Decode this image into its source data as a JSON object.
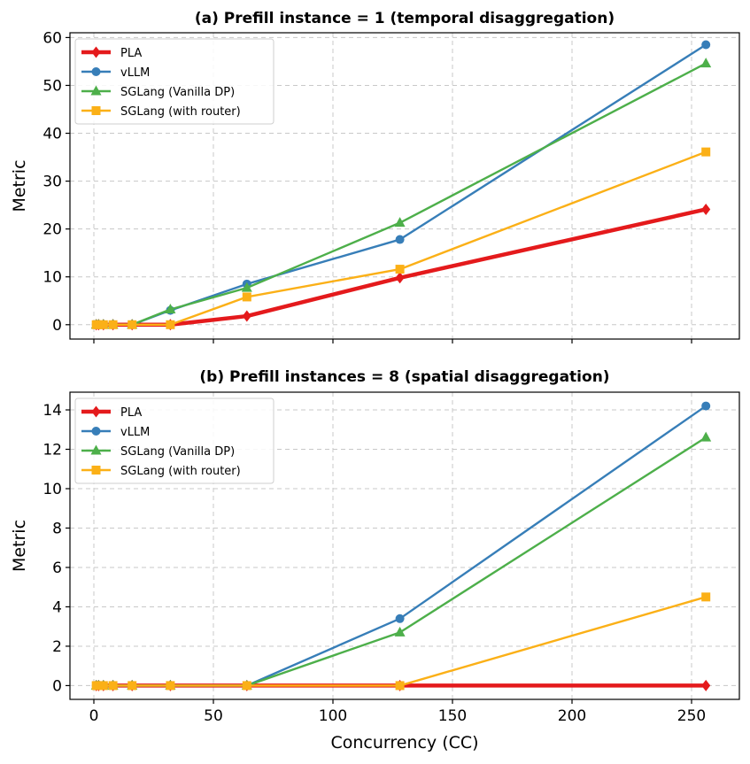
{
  "chart_data": [
    {
      "type": "line",
      "title": "(a) Prefill instance = 1  (temporal disaggregation)",
      "xlabel": "",
      "ylabel": "Metric",
      "x": [
        1,
        2,
        4,
        8,
        16,
        32,
        64,
        128,
        256
      ],
      "xlim": [
        -10,
        270
      ],
      "ylim": [
        -3,
        61
      ],
      "xticks": [
        0,
        50,
        100,
        150,
        200,
        250
      ],
      "yticks": [
        0,
        10,
        20,
        30,
        40,
        50,
        60
      ],
      "show_x_ticklabels": false,
      "grid": true,
      "legend_position": "top-left",
      "series": [
        {
          "name": "PLA",
          "color": "#e41a1c",
          "marker": "diamond",
          "width": 4.5,
          "values": [
            0,
            0,
            0,
            0,
            0,
            0,
            1.8,
            9.8,
            24.1
          ]
        },
        {
          "name": "vLLM",
          "color": "#377eb8",
          "marker": "circle",
          "width": 2.4,
          "values": [
            0,
            0,
            0,
            0,
            0,
            3.0,
            8.5,
            17.8,
            58.5
          ]
        },
        {
          "name": "SGLang (Vanilla DP)",
          "color": "#4daf4a",
          "marker": "triangle",
          "width": 2.4,
          "values": [
            0,
            0,
            0,
            0,
            0,
            3.2,
            7.7,
            21.3,
            54.6
          ]
        },
        {
          "name": "SGLang (with router)",
          "color": "#fbb017",
          "marker": "square",
          "width": 2.4,
          "values": [
            0,
            0,
            0,
            0,
            0,
            0,
            5.8,
            11.6,
            36.1
          ]
        }
      ]
    },
    {
      "type": "line",
      "title": "(b) Prefill instances = 8  (spatial disaggregation)",
      "xlabel": "Concurrency (CC)",
      "ylabel": "Metric",
      "x": [
        1,
        2,
        4,
        8,
        16,
        32,
        64,
        128,
        256
      ],
      "xlim": [
        -10,
        270
      ],
      "ylim": [
        -0.7,
        14.9
      ],
      "xticks": [
        0,
        50,
        100,
        150,
        200,
        250
      ],
      "yticks": [
        0,
        2,
        4,
        6,
        8,
        10,
        12,
        14
      ],
      "show_x_ticklabels": true,
      "grid": true,
      "legend_position": "top-left",
      "series": [
        {
          "name": "PLA",
          "color": "#e41a1c",
          "marker": "diamond",
          "width": 4.5,
          "values": [
            0,
            0,
            0,
            0,
            0,
            0,
            0,
            0,
            0
          ]
        },
        {
          "name": "vLLM",
          "color": "#377eb8",
          "marker": "circle",
          "width": 2.4,
          "values": [
            0,
            0,
            0,
            0,
            0,
            0,
            0,
            3.4,
            14.2
          ]
        },
        {
          "name": "SGLang (Vanilla DP)",
          "color": "#4daf4a",
          "marker": "triangle",
          "width": 2.4,
          "values": [
            0,
            0,
            0,
            0,
            0,
            0,
            0,
            2.7,
            12.6
          ]
        },
        {
          "name": "SGLang (with router)",
          "color": "#fbb017",
          "marker": "square",
          "width": 2.4,
          "values": [
            0,
            0,
            0,
            0,
            0,
            0,
            0,
            0,
            4.5
          ]
        }
      ]
    }
  ]
}
